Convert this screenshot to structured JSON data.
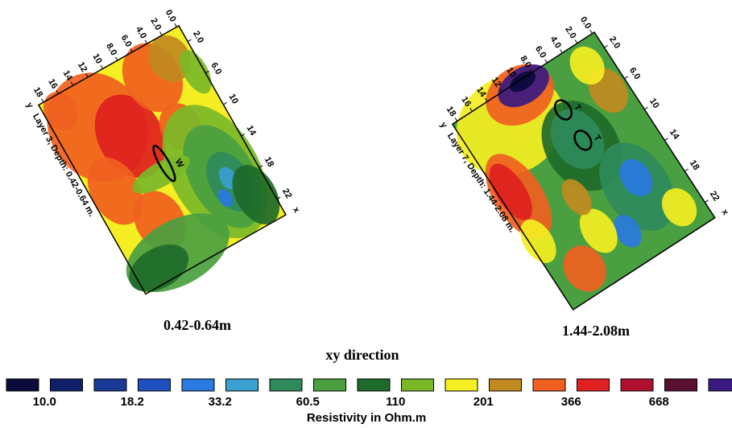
{
  "maps": [
    {
      "y_axis_ticks": [
        "0.0",
        "2.0",
        "4.0",
        "6.0",
        "8.0",
        "10",
        "12",
        "14",
        "16",
        "18"
      ],
      "y_axis_name": "y",
      "x_axis_ticks": [
        "2.0",
        "6.0",
        "10",
        "14",
        "18",
        "22"
      ],
      "x_axis_name": "x",
      "layer_label": "Layer 3, Depth: 0.42-0.64 m.",
      "annotations": [
        "W"
      ],
      "caption": "0.42-0.64m"
    },
    {
      "y_axis_ticks": [
        "0.0",
        "2.0",
        "4.0",
        "6.0",
        "8.0",
        "10",
        "12",
        "14",
        "16",
        "18"
      ],
      "y_axis_name": "y",
      "x_axis_ticks": [
        "2.0",
        "6.0",
        "10",
        "14",
        "18",
        "22"
      ],
      "x_axis_name": "x",
      "layer_label": "Layer 7, Depth: 1.44-2.08 m.",
      "annotations": [
        "T",
        "T"
      ],
      "caption": "1.44-2.08m"
    }
  ],
  "legend": {
    "title": "xy direction",
    "colors": [
      "#0a0a3c",
      "#102068",
      "#1a3a98",
      "#2050c0",
      "#2a7ae0",
      "#3aa0d0",
      "#2e8a5a",
      "#4aa040",
      "#1e6a2a",
      "#7ab828",
      "#f4ee22",
      "#c08a20",
      "#f06020",
      "#e02020",
      "#b01030",
      "#5a1030",
      "#3a1a80"
    ],
    "labels": [
      "10.0",
      "18.2",
      "33.2",
      "60.5",
      "110",
      "201",
      "366",
      "668"
    ],
    "unit_label": "Resistivity in Ohm.m"
  }
}
